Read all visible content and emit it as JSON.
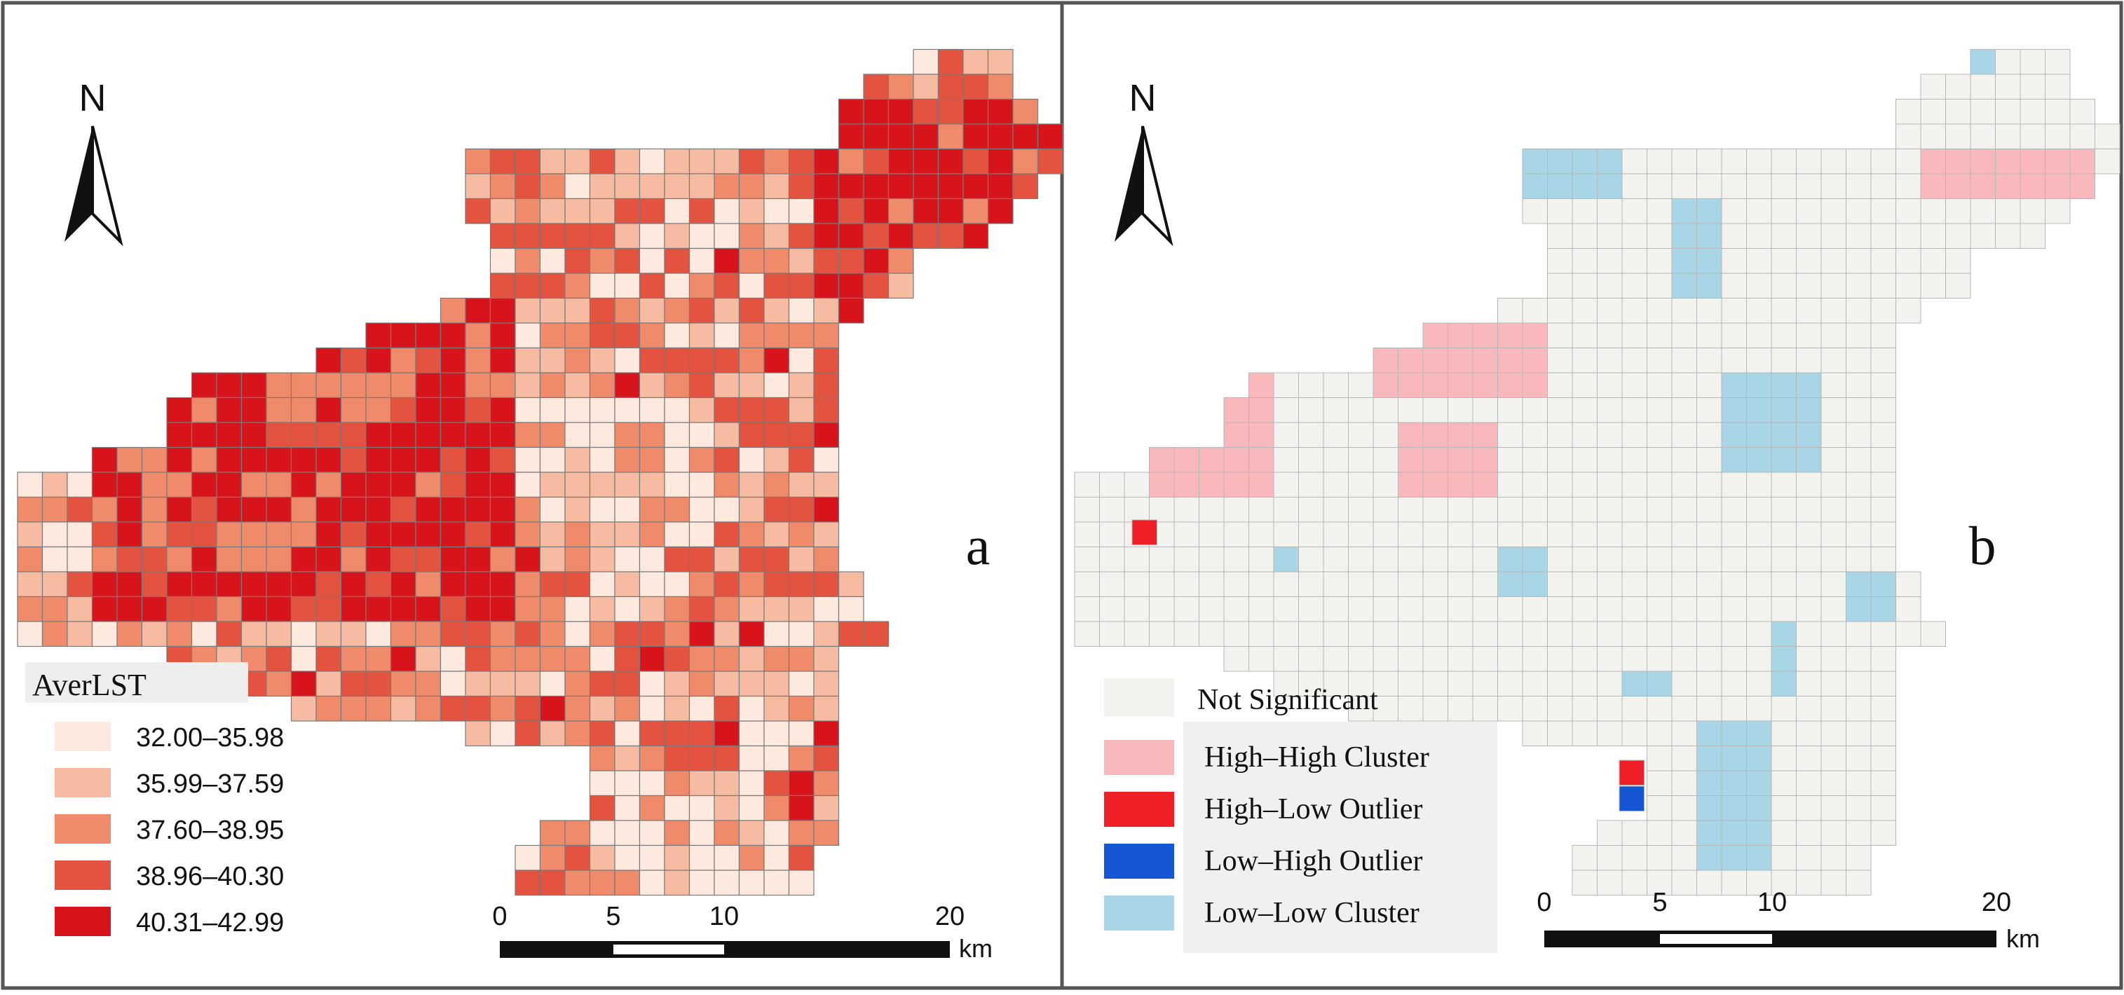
{
  "panels": [
    {
      "id": "a",
      "panel_label": "a",
      "north_label": "N",
      "legend": {
        "title": "AverLST",
        "classes": [
          {
            "label": "32.00–35.98",
            "color": "#fde9dd"
          },
          {
            "label": "35.99–37.59",
            "color": "#f6bba0"
          },
          {
            "label": "37.60–38.95",
            "color": "#ef8a6a"
          },
          {
            "label": "38.96–40.30",
            "color": "#e4533f"
          },
          {
            "label": "40.31–42.99",
            "color": "#d7141c"
          }
        ]
      },
      "scale_bar": {
        "ticks": [
          "0",
          "5",
          "10",
          "20"
        ],
        "unit": "km"
      }
    },
    {
      "id": "b",
      "panel_label": "b",
      "north_label": "N",
      "legend": {
        "title": "",
        "classes": [
          {
            "label": "Not Significant",
            "color": "#f2f3ef"
          },
          {
            "label": "High–High Cluster",
            "color": "#f9b8bb"
          },
          {
            "label": "High–Low Outlier",
            "color": "#ef1f27"
          },
          {
            "label": "Low–High Outlier",
            "color": "#1456d4"
          },
          {
            "label": "Low–Low Cluster",
            "color": "#a9d6e7"
          }
        ]
      },
      "scale_bar": {
        "ticks": [
          "0",
          "5",
          "10",
          "20"
        ],
        "unit": "km"
      }
    }
  ],
  "colors": {
    "frame": "#555555",
    "grid_line": "#7a7a7a",
    "grid_line_b": "#b7b7b7"
  }
}
